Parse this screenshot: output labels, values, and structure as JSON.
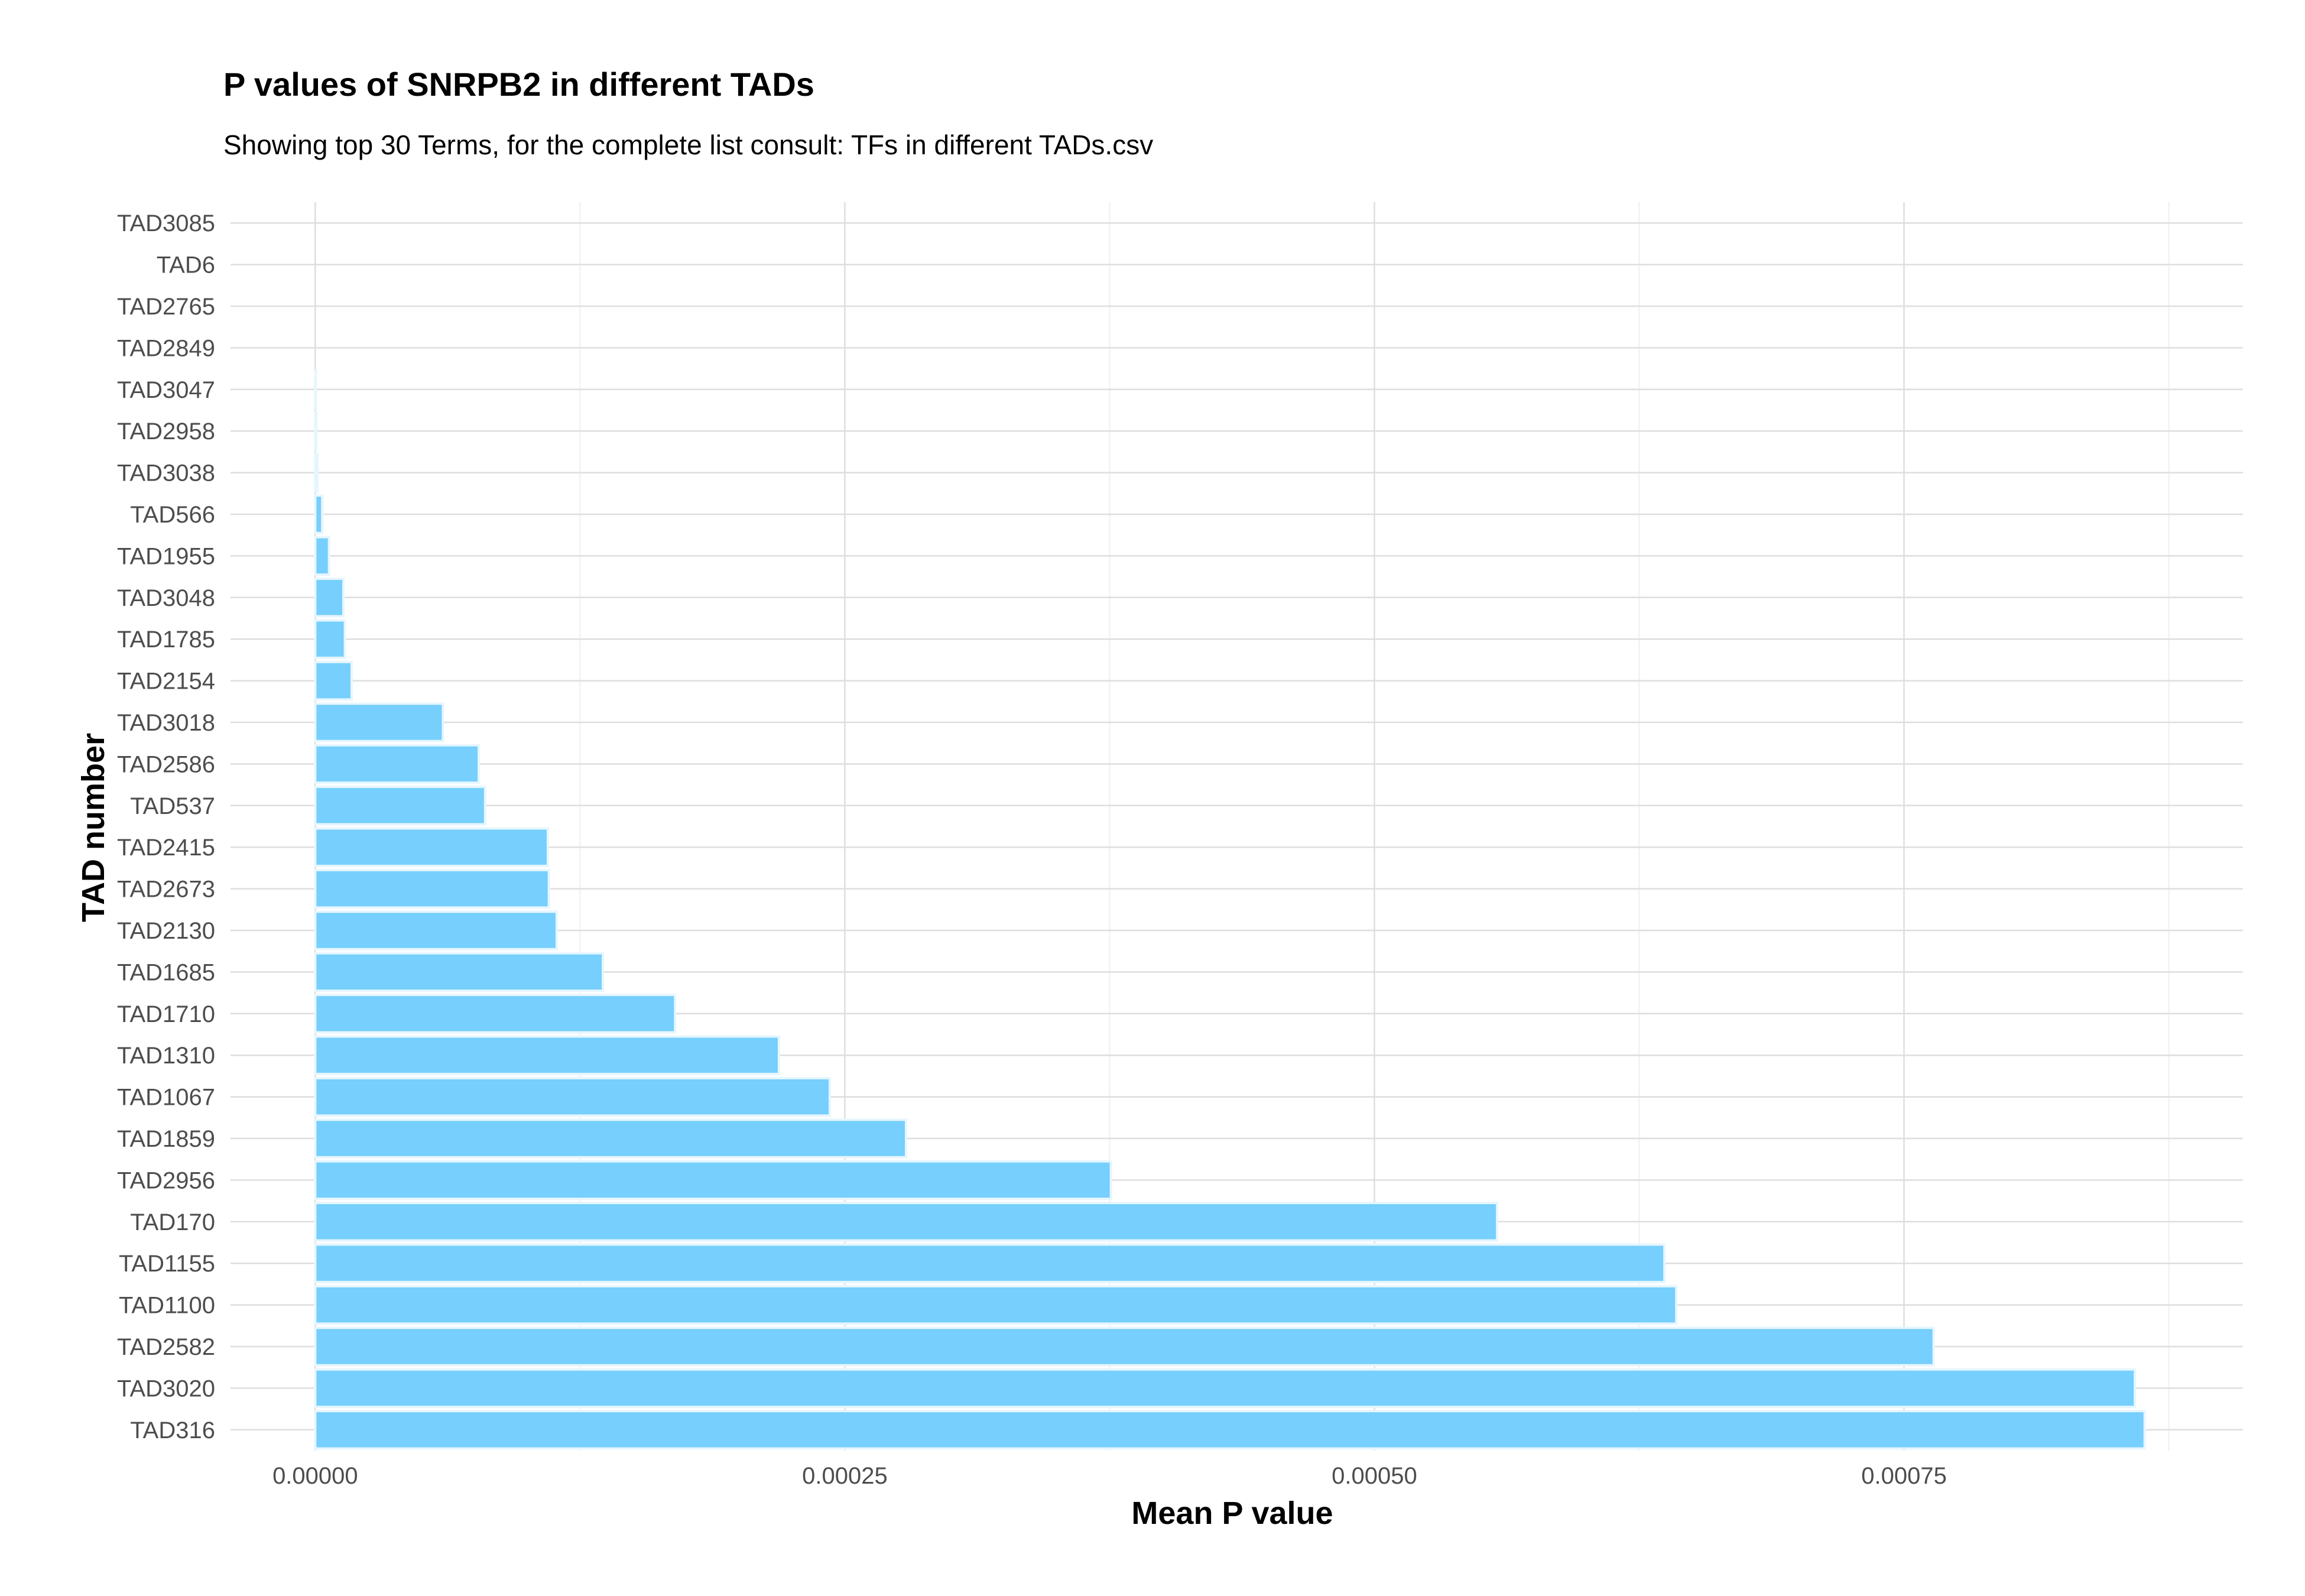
{
  "chart_data": {
    "type": "bar",
    "orientation": "horizontal",
    "title": "P values of SNRPB2 in different TADs",
    "subtitle": "Showing top 30 Terms, for the complete list consult: TFs in different TADs.csv",
    "xlabel": "Mean P value",
    "ylabel": "TAD number",
    "xlim": [
      -4e-05,
      0.00091
    ],
    "x_ticks": [
      "0.00000",
      "0.00025",
      "0.00050",
      "0.00075"
    ],
    "x_tick_values": [
      0,
      0.00025,
      0.0005,
      0.00075
    ],
    "grid": true,
    "bar_color": "#76cffc",
    "bar_edge_color": "#e6f6ff",
    "categories": [
      "TAD3085",
      "TAD6",
      "TAD2765",
      "TAD2849",
      "TAD3047",
      "TAD2958",
      "TAD3038",
      "TAD566",
      "TAD1955",
      "TAD3048",
      "TAD1785",
      "TAD2154",
      "TAD3018",
      "TAD2586",
      "TAD537",
      "TAD2415",
      "TAD2673",
      "TAD2130",
      "TAD1685",
      "TAD1710",
      "TAD1310",
      "TAD1067",
      "TAD1859",
      "TAD2956",
      "TAD170",
      "TAD1155",
      "TAD1100",
      "TAD2582",
      "TAD3020",
      "TAD316"
    ],
    "values": [
      0,
      0,
      0,
      0,
      3e-07,
      5e-07,
      1e-06,
      3.3e-06,
      6.5e-06,
      1.33e-05,
      1.4e-05,
      1.72e-05,
      6.03e-05,
      7.72e-05,
      8.02e-05,
      0.0001098,
      0.0001103,
      0.000114,
      0.0001358,
      0.0001699,
      0.0002189,
      0.0002429,
      0.0002789,
      0.0003756,
      0.0005579,
      0.0006369,
      0.0006425,
      0.000764,
      0.000859,
      0.0008636
    ]
  }
}
